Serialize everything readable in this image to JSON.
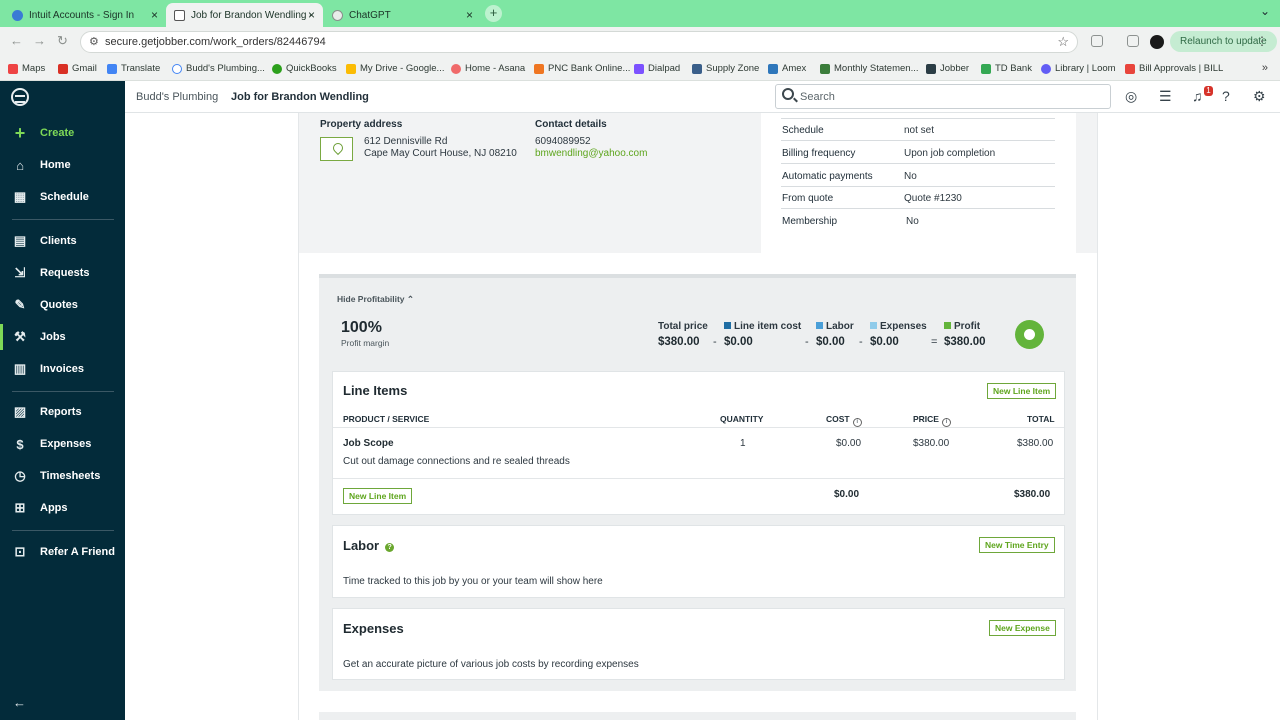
{
  "browser": {
    "tabs": [
      {
        "label": "Intuit Accounts - Sign In",
        "close": "×"
      },
      {
        "label": "Job for Brandon Wendling -",
        "close": "×"
      },
      {
        "label": "ChatGPT",
        "close": "×"
      }
    ],
    "new_tab": "+",
    "tab_menu": "⌄",
    "url": "secure.getjobber.com/work_orders/82446794",
    "relaunch": "Relaunch to update",
    "bookmarks": [
      "Maps",
      "Gmail",
      "Translate",
      "Budd's Plumbing...",
      "QuickBooks",
      "My Drive - Google...",
      "Home - Asana",
      "PNC Bank Online...",
      "Dialpad",
      "Supply Zone",
      "Amex",
      "Monthly Statemen...",
      "Jobber",
      "TD Bank",
      "Library | Loom",
      "Bill Approvals | BILL"
    ],
    "bookmarks_more": "»"
  },
  "sidebar": {
    "create": "Create",
    "items": [
      "Home",
      "Schedule",
      "Clients",
      "Requests",
      "Quotes",
      "Jobs",
      "Invoices",
      "Reports",
      "Expenses",
      "Timesheets",
      "Apps",
      "Refer A Friend"
    ],
    "active": "Jobs",
    "accent": "#7ed957"
  },
  "header": {
    "breadcrumb_company": "Budd's Plumbing",
    "breadcrumb_job": "Job for Brandon Wendling",
    "search_placeholder": "Search",
    "notification_count": "1"
  },
  "job": {
    "property_label": "Property address",
    "address_line1": "612 Dennisville Rd",
    "address_line2": "Cape May Court House, NJ 08210",
    "contact_label": "Contact details",
    "phone": "6094089952",
    "email": "bmwendling@yahoo.com",
    "details": [
      {
        "key": "Schedule",
        "value": "not set"
      },
      {
        "key": "Billing frequency",
        "value": "Upon job completion"
      },
      {
        "key": "Automatic payments",
        "value": "No"
      },
      {
        "key": "From quote",
        "value": "Quote #1230"
      },
      {
        "key": "Membership",
        "value": "No"
      }
    ]
  },
  "profitability": {
    "toggle": "Hide Profitability",
    "margin": "100%",
    "margin_label": "Profit margin",
    "total_price_label": "Total price",
    "total_price": "$380.00",
    "line_item_cost_label": "Line item cost",
    "line_item_cost": "$0.00",
    "labor_label": "Labor",
    "labor": "$0.00",
    "expenses_label": "Expenses",
    "expenses": "$0.00",
    "profit_label": "Profit",
    "profit": "$380.00",
    "op_minus": "-",
    "op_equals": "=",
    "colors": {
      "line_item_cost": "#1f6da3",
      "labor": "#4a9fd8",
      "expenses": "#8fcbea",
      "profit": "#63b43b"
    }
  },
  "line_items": {
    "title": "Line Items",
    "new_button": "New Line Item",
    "columns": [
      "PRODUCT / SERVICE",
      "QUANTITY",
      "COST",
      "PRICE",
      "TOTAL"
    ],
    "rows": [
      {
        "name": "Job Scope",
        "description": "Cut out damage connections and re sealed threads",
        "quantity": "1",
        "cost": "$0.00",
        "price": "$380.00",
        "total": "$380.00"
      }
    ],
    "footer_button": "New Line Item",
    "footer_cost": "$0.00",
    "footer_total": "$380.00"
  },
  "labor": {
    "title": "Labor",
    "new_button": "New Time Entry",
    "empty_text": "Time tracked to this job by you or your team will show here"
  },
  "expenses": {
    "title": "Expenses",
    "new_button": "New Expense",
    "empty_text": "Get an accurate picture of various job costs by recording expenses"
  }
}
